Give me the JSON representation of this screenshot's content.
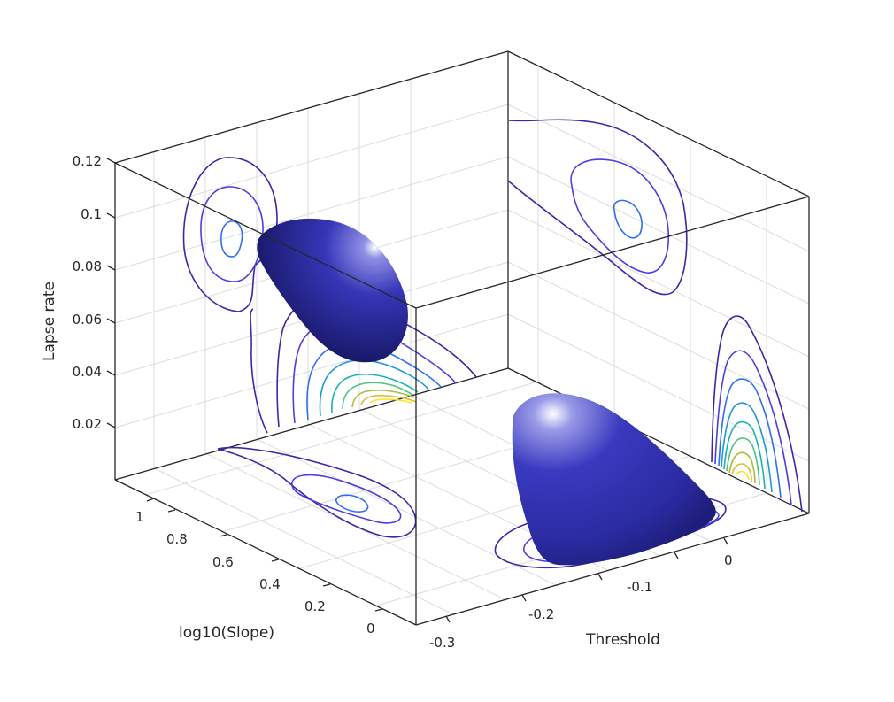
{
  "chart_data": {
    "type": "surface3d",
    "xlabel": "Threshold",
    "ylabel": "log10(Slope)",
    "zlabel": "Lapse rate",
    "x_ticks": [
      "-0.3",
      "-0.2",
      "-0.1",
      "0"
    ],
    "y_ticks": [
      "0",
      "0.2",
      "0.4",
      "0.6",
      "0.8",
      "1"
    ],
    "z_ticks": [
      "0.02",
      "0.04",
      "0.06",
      "0.08",
      "0.1",
      "0.12"
    ],
    "grid": true,
    "box": true,
    "surface_color": "#2e2eb4",
    "contour_colors": [
      "#3e26a8",
      "#4a3fe0",
      "#2f6ff0",
      "#1e9ad8",
      "#1ab3b0",
      "#52c185",
      "#a8bd3a",
      "#e0b92e",
      "#f9e620"
    ]
  }
}
